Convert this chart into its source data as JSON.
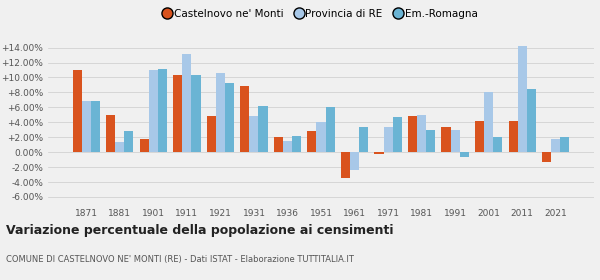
{
  "years": [
    1871,
    1881,
    1901,
    1911,
    1921,
    1931,
    1936,
    1951,
    1961,
    1971,
    1981,
    1991,
    2001,
    2011,
    2021
  ],
  "castelnovo": [
    11.0,
    5.0,
    1.7,
    10.3,
    4.8,
    8.8,
    2.0,
    2.8,
    -3.4,
    -0.3,
    4.8,
    3.3,
    4.2,
    4.2,
    -1.3
  ],
  "provincia_re": [
    6.8,
    1.4,
    11.0,
    13.2,
    10.6,
    4.9,
    1.5,
    4.0,
    -2.4,
    3.4,
    5.0,
    3.0,
    8.0,
    14.2,
    1.7
  ],
  "emilia_romagna": [
    6.8,
    2.8,
    11.2,
    10.3,
    9.2,
    6.2,
    2.1,
    6.1,
    3.3,
    4.7,
    3.0,
    -0.7,
    2.0,
    8.5,
    2.0
  ],
  "castelnovo_color": "#d9531e",
  "provincia_color": "#a8c8e8",
  "emilia_color": "#6ab4d4",
  "legend_labels": [
    "Castelnovo ne' Monti",
    "Provincia di RE",
    "Em.-Romagna"
  ],
  "title": "Variazione percentuale della popolazione ai censimenti",
  "subtitle": "COMUNE DI CASTELNOVO NE' MONTI (RE) - Dati ISTAT - Elaborazione TUTTITALIA.IT",
  "ylim": [
    -7.0,
    15.5
  ],
  "yticks": [
    -6.0,
    -4.0,
    -2.0,
    0.0,
    2.0,
    4.0,
    6.0,
    8.0,
    10.0,
    12.0,
    14.0
  ],
  "ytick_labels": [
    "-6.00%",
    "-4.00%",
    "-2.00%",
    "0.00%",
    "+2.00%",
    "+4.00%",
    "+6.00%",
    "+8.00%",
    "+10.00%",
    "+12.00%",
    "+14.00%"
  ],
  "bar_width": 0.27,
  "bg_color": "#f0f0f0",
  "grid_color": "#cccccc"
}
